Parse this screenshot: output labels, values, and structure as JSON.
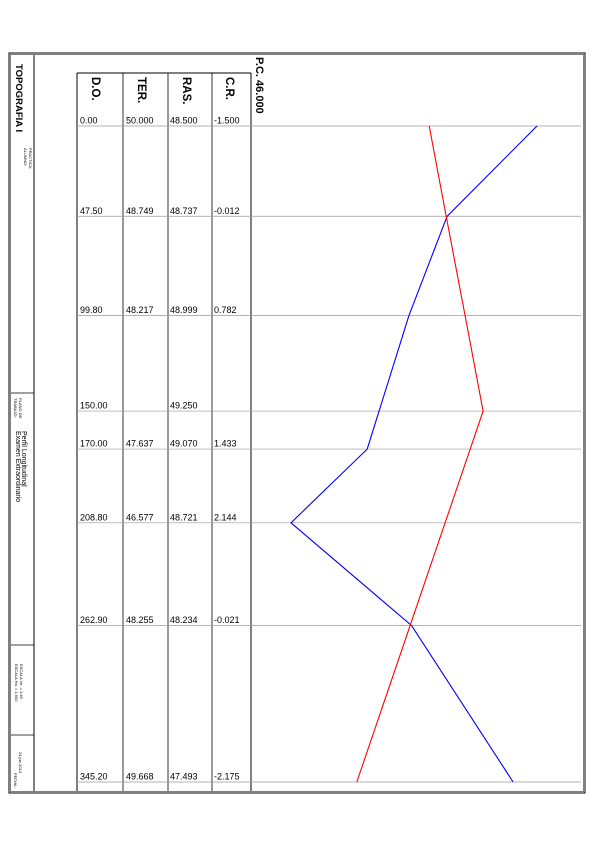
{
  "chart_data": {
    "type": "line",
    "title": "P.C. 46.000",
    "datum": 46.0,
    "row_headers": [
      "D.O.",
      "TER.",
      "RAS.",
      "C.R."
    ],
    "x": [
      0.0,
      47.5,
      99.8,
      150.0,
      170.0,
      208.8,
      262.9,
      345.2
    ],
    "x_labels": [
      "0.00",
      "47.50",
      "99.80",
      "150.00",
      "170.00",
      "208.80",
      "262.90",
      "345.20"
    ],
    "ter_labels": [
      "50.000",
      "48.749",
      "48.217",
      "",
      "47.637",
      "46.577",
      "48.255",
      "49.668"
    ],
    "ras_labels": [
      "48.500",
      "48.737",
      "48.999",
      "49.250",
      "49.070",
      "48.721",
      "48.234",
      "47.493"
    ],
    "cr_labels": [
      "-1.500",
      "-0.012",
      "0.782",
      "",
      "1.433",
      "2.144",
      "-0.021",
      "-2.175"
    ],
    "series": [
      {
        "key": "terrain",
        "color": "#0000ff",
        "x": [
          0.0,
          47.5,
          99.8,
          170.0,
          208.8,
          262.9,
          345.2
        ],
        "values": [
          50.0,
          48.749,
          48.217,
          47.637,
          46.577,
          48.255,
          49.668
        ]
      },
      {
        "key": "grade",
        "color": "#ff0000",
        "x": [
          0.0,
          47.5,
          99.8,
          150.0,
          170.0,
          208.8,
          262.9,
          345.2
        ],
        "values": [
          48.5,
          48.737,
          48.999,
          49.25,
          49.07,
          48.721,
          48.234,
          47.493
        ]
      }
    ]
  },
  "title_block": {
    "course": "TOPOGRAFIA I",
    "alumno_label": "ALUMNO:",
    "practica_label": "PRACTICA:",
    "trabajo_label": "TRABAJO:",
    "trabajo_value": "Examen Extraordinario",
    "plano_label": "PLANO DE:",
    "plano_value": "Perfil Longitudinal",
    "escala_h": "ESCALA Ho. = 1:500",
    "escala_v": "ESCALA Ve. = 1:40",
    "fecha_label": "FECHA:",
    "fecha_value": "24 jun 2014"
  }
}
